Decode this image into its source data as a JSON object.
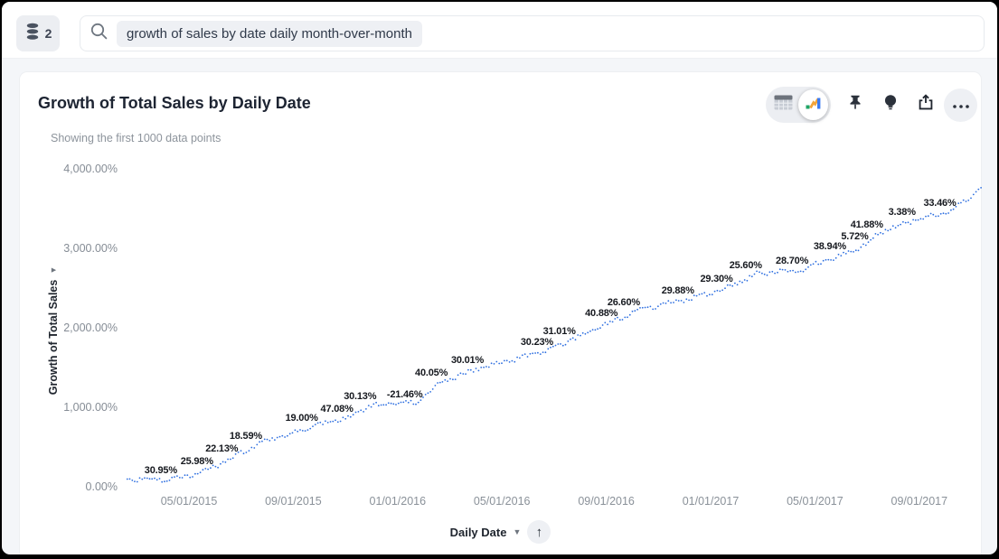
{
  "topbar": {
    "datasource_count": "2",
    "search_query": "growth of sales by date daily month-over-month"
  },
  "answer": {
    "title": "Growth of Total Sales by Daily Date",
    "subtitle": "Showing the first 1000 data points"
  },
  "toolbar": {
    "table_view": "table-view",
    "chart_view": "chart-view",
    "pin": "pin",
    "spotiq": "spotiq-insights",
    "share": "share",
    "more": "more-options"
  },
  "axis_controls": {
    "x_field_label": "Daily Date",
    "sort_direction": "ascending"
  },
  "chart_data": {
    "type": "line",
    "title": "Growth of Total Sales by Daily Date",
    "subtitle": "Showing the first 1000 data points",
    "xlabel": "Daily Date",
    "ylabel": "Growth of Total Sales",
    "x_ticks": [
      "05/01/2015",
      "09/01/2015",
      "01/01/2016",
      "05/01/2016",
      "09/01/2016",
      "01/01/2017",
      "05/01/2017",
      "09/01/2017"
    ],
    "y_ticks": [
      "0.00%",
      "1,000.00%",
      "2,000.00%",
      "3,000.00%",
      "4,000.00%"
    ],
    "y_tick_values": [
      0,
      1000,
      2000,
      3000,
      4000
    ],
    "ylim": [
      0,
      4000
    ],
    "grid": false,
    "legend": false,
    "line_style": "dotted",
    "line_color": "#2e6fe0",
    "label_color": "#15181e",
    "point_labels": [
      {
        "text": "30.95%",
        "value": 30.95,
        "fx": 0.043,
        "fy": 0.942
      },
      {
        "text": "25.98%",
        "value": 25.98,
        "fx": 0.085,
        "fy": 0.914
      },
      {
        "text": "22.13%",
        "value": 22.13,
        "fx": 0.114,
        "fy": 0.875
      },
      {
        "text": "18.59%",
        "value": 18.59,
        "fx": 0.142,
        "fy": 0.836
      },
      {
        "text": "19.00%",
        "value": 19.0,
        "fx": 0.207,
        "fy": 0.781
      },
      {
        "text": "47.08%",
        "value": 47.08,
        "fx": 0.248,
        "fy": 0.753
      },
      {
        "text": "30.13%",
        "value": 30.13,
        "fx": 0.275,
        "fy": 0.714
      },
      {
        "text": "-21.46%",
        "value": -21.46,
        "fx": 0.327,
        "fy": 0.708
      },
      {
        "text": "40.05%",
        "value": 40.05,
        "fx": 0.358,
        "fy": 0.642
      },
      {
        "text": "30.01%",
        "value": 30.01,
        "fx": 0.4,
        "fy": 0.603
      },
      {
        "text": "30.23%",
        "value": 30.23,
        "fx": 0.481,
        "fy": 0.547
      },
      {
        "text": "31.01%",
        "value": 31.01,
        "fx": 0.507,
        "fy": 0.514
      },
      {
        "text": "40.88%",
        "value": 40.88,
        "fx": 0.556,
        "fy": 0.458
      },
      {
        "text": "26.60%",
        "value": 26.6,
        "fx": 0.582,
        "fy": 0.425
      },
      {
        "text": "29.88%",
        "value": 29.88,
        "fx": 0.645,
        "fy": 0.389
      },
      {
        "text": "29.30%",
        "value": 29.3,
        "fx": 0.69,
        "fy": 0.353
      },
      {
        "text": "25.60%",
        "value": 25.6,
        "fx": 0.724,
        "fy": 0.311
      },
      {
        "text": "28.70%",
        "value": 28.7,
        "fx": 0.778,
        "fy": 0.297
      },
      {
        "text": "38.94%",
        "value": 38.94,
        "fx": 0.822,
        "fy": 0.253
      },
      {
        "text": "5.72%",
        "value": 5.72,
        "fx": 0.851,
        "fy": 0.222
      },
      {
        "text": "41.88%",
        "value": 41.88,
        "fx": 0.865,
        "fy": 0.186
      },
      {
        "text": "3.38%",
        "value": 3.38,
        "fx": 0.906,
        "fy": 0.147
      },
      {
        "text": "33.46%",
        "value": 33.46,
        "fx": 0.95,
        "fy": 0.119
      }
    ]
  }
}
